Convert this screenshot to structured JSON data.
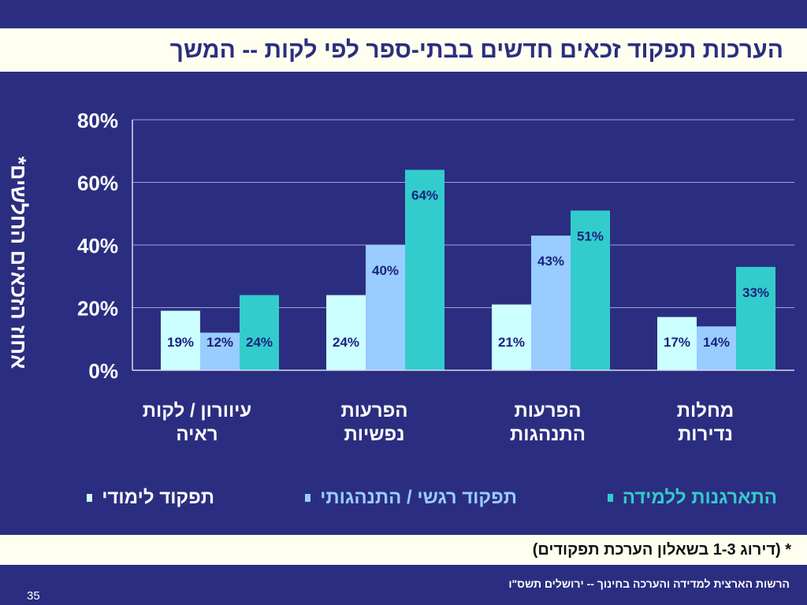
{
  "title": "הערכות תפקוד זכאים חדשים בבתי-ספר לפי לקות  -- המשך",
  "note": "* (דירוג 1-3 בשאלון הערכת תפקודים)",
  "footer": "הרשות הארצית למדידה והערכה בחינוך  -- ירושלים תשס\"ו",
  "page_number": "35",
  "colors": {
    "background": "#2B2E80",
    "band": "#FFFFF0",
    "series_learning": "#CCFFFF",
    "series_emotional": "#99CCFF",
    "series_organization": "#33CCCC",
    "label_text": "#1A237E"
  },
  "chart_data": {
    "type": "bar",
    "title": "",
    "ylabel": "אחוז הזכאים החלשים*",
    "xlabel": "",
    "ylim": [
      0,
      80
    ],
    "y_ticks": [
      "0%",
      "20%",
      "40%",
      "60%",
      "80%"
    ],
    "grid": true,
    "legend_position": "bottom",
    "categories": [
      "עיוורון / לקות ראיה",
      "הפרעות נפשיות",
      "הפרעות התנהגות",
      "מחלות נדירות"
    ],
    "series": [
      {
        "name": "תפקוד לימודי",
        "color": "#CCFFFF",
        "values": [
          19,
          24,
          21,
          17
        ],
        "labels": [
          "19%",
          "24%",
          "21%",
          "17%"
        ]
      },
      {
        "name": "תפקוד רגשי / התנהגותי",
        "color": "#99CCFF",
        "values": [
          12,
          40,
          43,
          14
        ],
        "labels": [
          "12%",
          "40%",
          "43%",
          "14%"
        ]
      },
      {
        "name": "התארגנות ללמידה",
        "color": "#33CCCC",
        "values": [
          24,
          64,
          51,
          33
        ],
        "labels": [
          "24%",
          "64%",
          "51%",
          "33%"
        ]
      }
    ]
  }
}
